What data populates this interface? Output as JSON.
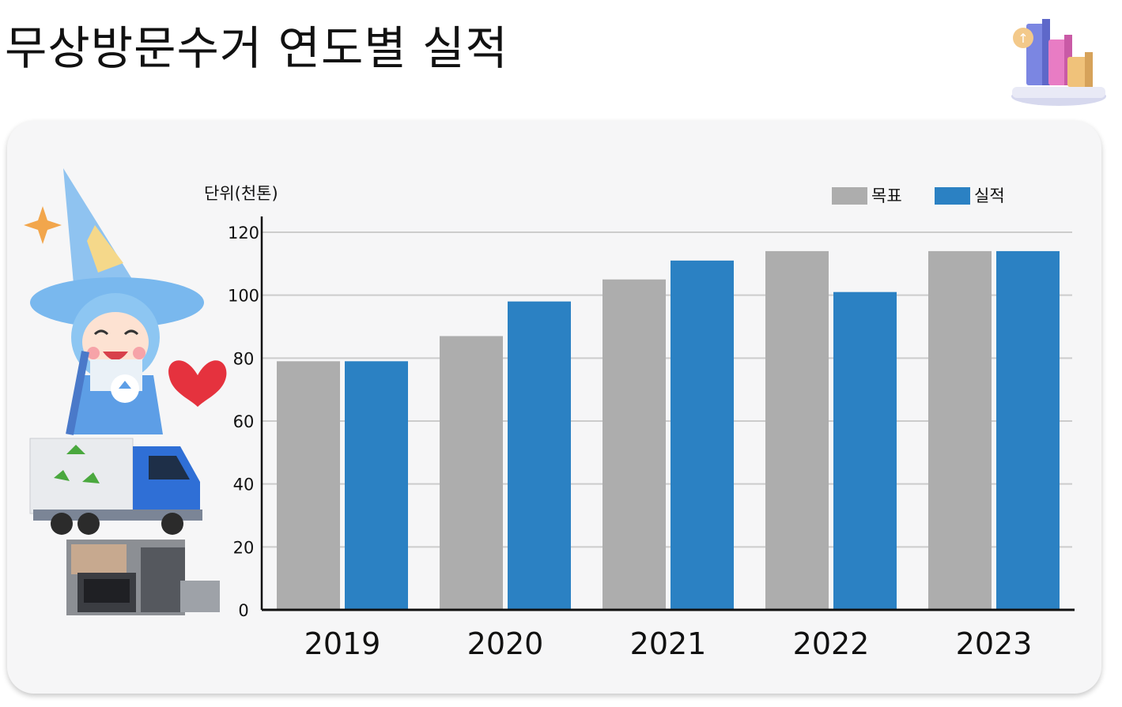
{
  "page": {
    "title": "무상방문수거 연도별 실적"
  },
  "colors": {
    "target": "#adadad",
    "actual": "#2b81c3",
    "card": "#f6f6f7",
    "grid": "#cccccc"
  },
  "icons": {
    "header": "bar-chart-3d-icon",
    "mascot": "wizard-mascot-recycling-truck-illustration"
  },
  "chart_data": {
    "type": "bar",
    "unit_label": "단위(천톤)",
    "categories": [
      "2019",
      "2020",
      "2021",
      "2022",
      "2023"
    ],
    "series": [
      {
        "name": "목표",
        "values": [
          79,
          87,
          105,
          114,
          114
        ]
      },
      {
        "name": "실적",
        "values": [
          79,
          98,
          111,
          101,
          114
        ]
      }
    ],
    "ylim": [
      0,
      120
    ],
    "yticks": [
      0,
      20,
      40,
      60,
      80,
      100,
      120
    ],
    "grid": true,
    "legend": "top-right"
  }
}
